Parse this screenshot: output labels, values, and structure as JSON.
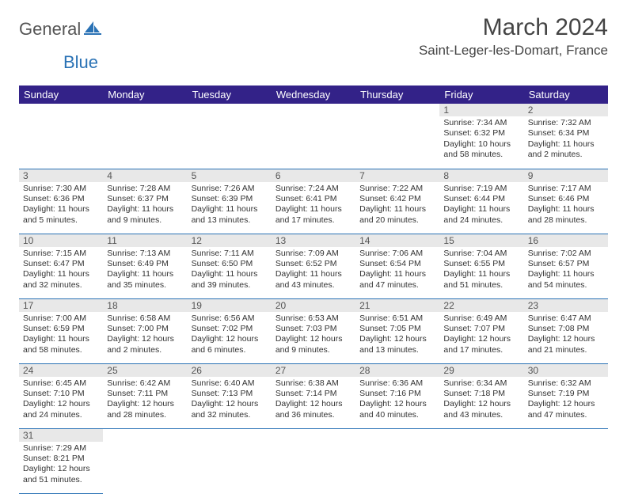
{
  "logo": {
    "main": "General",
    "sub": "Blue"
  },
  "title": "March 2024",
  "location": "Saint-Leger-les-Domart, France",
  "colors": {
    "header_bg": "#2a72b5",
    "header_text": "#ffffff",
    "daynum_bg": "#e8e8e8",
    "border": "#2a72b5",
    "text": "#333333",
    "logo_sub": "#2a72b5"
  },
  "weekdays": [
    "Sunday",
    "Monday",
    "Tuesday",
    "Wednesday",
    "Thursday",
    "Friday",
    "Saturday"
  ],
  "weeks": [
    [
      null,
      null,
      null,
      null,
      null,
      {
        "n": "1",
        "sunrise": "Sunrise: 7:34 AM",
        "sunset": "Sunset: 6:32 PM",
        "day1": "Daylight: 10 hours",
        "day2": "and 58 minutes."
      },
      {
        "n": "2",
        "sunrise": "Sunrise: 7:32 AM",
        "sunset": "Sunset: 6:34 PM",
        "day1": "Daylight: 11 hours",
        "day2": "and 2 minutes."
      }
    ],
    [
      {
        "n": "3",
        "sunrise": "Sunrise: 7:30 AM",
        "sunset": "Sunset: 6:36 PM",
        "day1": "Daylight: 11 hours",
        "day2": "and 5 minutes."
      },
      {
        "n": "4",
        "sunrise": "Sunrise: 7:28 AM",
        "sunset": "Sunset: 6:37 PM",
        "day1": "Daylight: 11 hours",
        "day2": "and 9 minutes."
      },
      {
        "n": "5",
        "sunrise": "Sunrise: 7:26 AM",
        "sunset": "Sunset: 6:39 PM",
        "day1": "Daylight: 11 hours",
        "day2": "and 13 minutes."
      },
      {
        "n": "6",
        "sunrise": "Sunrise: 7:24 AM",
        "sunset": "Sunset: 6:41 PM",
        "day1": "Daylight: 11 hours",
        "day2": "and 17 minutes."
      },
      {
        "n": "7",
        "sunrise": "Sunrise: 7:22 AM",
        "sunset": "Sunset: 6:42 PM",
        "day1": "Daylight: 11 hours",
        "day2": "and 20 minutes."
      },
      {
        "n": "8",
        "sunrise": "Sunrise: 7:19 AM",
        "sunset": "Sunset: 6:44 PM",
        "day1": "Daylight: 11 hours",
        "day2": "and 24 minutes."
      },
      {
        "n": "9",
        "sunrise": "Sunrise: 7:17 AM",
        "sunset": "Sunset: 6:46 PM",
        "day1": "Daylight: 11 hours",
        "day2": "and 28 minutes."
      }
    ],
    [
      {
        "n": "10",
        "sunrise": "Sunrise: 7:15 AM",
        "sunset": "Sunset: 6:47 PM",
        "day1": "Daylight: 11 hours",
        "day2": "and 32 minutes."
      },
      {
        "n": "11",
        "sunrise": "Sunrise: 7:13 AM",
        "sunset": "Sunset: 6:49 PM",
        "day1": "Daylight: 11 hours",
        "day2": "and 35 minutes."
      },
      {
        "n": "12",
        "sunrise": "Sunrise: 7:11 AM",
        "sunset": "Sunset: 6:50 PM",
        "day1": "Daylight: 11 hours",
        "day2": "and 39 minutes."
      },
      {
        "n": "13",
        "sunrise": "Sunrise: 7:09 AM",
        "sunset": "Sunset: 6:52 PM",
        "day1": "Daylight: 11 hours",
        "day2": "and 43 minutes."
      },
      {
        "n": "14",
        "sunrise": "Sunrise: 7:06 AM",
        "sunset": "Sunset: 6:54 PM",
        "day1": "Daylight: 11 hours",
        "day2": "and 47 minutes."
      },
      {
        "n": "15",
        "sunrise": "Sunrise: 7:04 AM",
        "sunset": "Sunset: 6:55 PM",
        "day1": "Daylight: 11 hours",
        "day2": "and 51 minutes."
      },
      {
        "n": "16",
        "sunrise": "Sunrise: 7:02 AM",
        "sunset": "Sunset: 6:57 PM",
        "day1": "Daylight: 11 hours",
        "day2": "and 54 minutes."
      }
    ],
    [
      {
        "n": "17",
        "sunrise": "Sunrise: 7:00 AM",
        "sunset": "Sunset: 6:59 PM",
        "day1": "Daylight: 11 hours",
        "day2": "and 58 minutes."
      },
      {
        "n": "18",
        "sunrise": "Sunrise: 6:58 AM",
        "sunset": "Sunset: 7:00 PM",
        "day1": "Daylight: 12 hours",
        "day2": "and 2 minutes."
      },
      {
        "n": "19",
        "sunrise": "Sunrise: 6:56 AM",
        "sunset": "Sunset: 7:02 PM",
        "day1": "Daylight: 12 hours",
        "day2": "and 6 minutes."
      },
      {
        "n": "20",
        "sunrise": "Sunrise: 6:53 AM",
        "sunset": "Sunset: 7:03 PM",
        "day1": "Daylight: 12 hours",
        "day2": "and 9 minutes."
      },
      {
        "n": "21",
        "sunrise": "Sunrise: 6:51 AM",
        "sunset": "Sunset: 7:05 PM",
        "day1": "Daylight: 12 hours",
        "day2": "and 13 minutes."
      },
      {
        "n": "22",
        "sunrise": "Sunrise: 6:49 AM",
        "sunset": "Sunset: 7:07 PM",
        "day1": "Daylight: 12 hours",
        "day2": "and 17 minutes."
      },
      {
        "n": "23",
        "sunrise": "Sunrise: 6:47 AM",
        "sunset": "Sunset: 7:08 PM",
        "day1": "Daylight: 12 hours",
        "day2": "and 21 minutes."
      }
    ],
    [
      {
        "n": "24",
        "sunrise": "Sunrise: 6:45 AM",
        "sunset": "Sunset: 7:10 PM",
        "day1": "Daylight: 12 hours",
        "day2": "and 24 minutes."
      },
      {
        "n": "25",
        "sunrise": "Sunrise: 6:42 AM",
        "sunset": "Sunset: 7:11 PM",
        "day1": "Daylight: 12 hours",
        "day2": "and 28 minutes."
      },
      {
        "n": "26",
        "sunrise": "Sunrise: 6:40 AM",
        "sunset": "Sunset: 7:13 PM",
        "day1": "Daylight: 12 hours",
        "day2": "and 32 minutes."
      },
      {
        "n": "27",
        "sunrise": "Sunrise: 6:38 AM",
        "sunset": "Sunset: 7:14 PM",
        "day1": "Daylight: 12 hours",
        "day2": "and 36 minutes."
      },
      {
        "n": "28",
        "sunrise": "Sunrise: 6:36 AM",
        "sunset": "Sunset: 7:16 PM",
        "day1": "Daylight: 12 hours",
        "day2": "and 40 minutes."
      },
      {
        "n": "29",
        "sunrise": "Sunrise: 6:34 AM",
        "sunset": "Sunset: 7:18 PM",
        "day1": "Daylight: 12 hours",
        "day2": "and 43 minutes."
      },
      {
        "n": "30",
        "sunrise": "Sunrise: 6:32 AM",
        "sunset": "Sunset: 7:19 PM",
        "day1": "Daylight: 12 hours",
        "day2": "and 47 minutes."
      }
    ],
    [
      {
        "n": "31",
        "sunrise": "Sunrise: 7:29 AM",
        "sunset": "Sunset: 8:21 PM",
        "day1": "Daylight: 12 hours",
        "day2": "and 51 minutes."
      },
      null,
      null,
      null,
      null,
      null,
      null
    ]
  ]
}
